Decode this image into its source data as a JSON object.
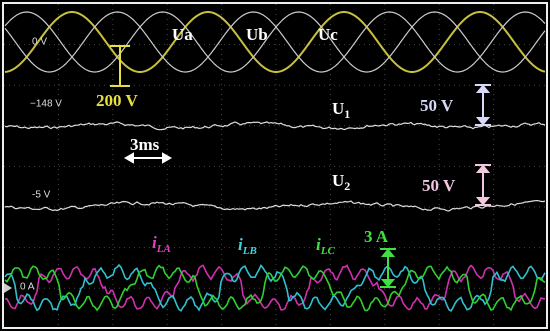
{
  "offsets": {
    "top": "0 V",
    "u1": "−148 V",
    "u2": "-5 V",
    "current": "0 A"
  },
  "phases": [
    "Ua",
    "Ub",
    "Uc"
  ],
  "scale_voltage": "200 V",
  "u1": {
    "main": "U",
    "sub": "1",
    "scale": "50 V"
  },
  "u2": {
    "main": "U",
    "sub": "2",
    "scale": "50 V"
  },
  "time_scale": "3ms",
  "currents": [
    {
      "main": "i",
      "sub": "LA"
    },
    {
      "main": "i",
      "sub": "LB"
    },
    {
      "main": "i",
      "sub": "LC"
    }
  ],
  "current_scale": "3 A"
}
